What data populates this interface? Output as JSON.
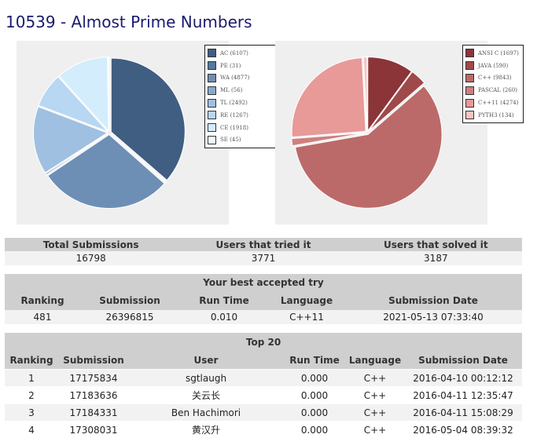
{
  "problem": {
    "title": "10539 - Almost Prime Numbers"
  },
  "verdict_chart": {
    "type": "pie",
    "legend": [
      {
        "label": "AC (6107)",
        "value": 6107,
        "color": "#3f5e82"
      },
      {
        "label": "PE (31)",
        "value": 31,
        "color": "#55799f"
      },
      {
        "label": "WA (4877)",
        "value": 4877,
        "color": "#6d8fb5"
      },
      {
        "label": "ML (56)",
        "value": 56,
        "color": "#86a9cc"
      },
      {
        "label": "TL (2492)",
        "value": 2492,
        "color": "#9fc0e0"
      },
      {
        "label": "RE (1267)",
        "value": 1267,
        "color": "#b8d7f2"
      },
      {
        "label": "CE (1918)",
        "value": 1918,
        "color": "#d3edfc"
      },
      {
        "label": "SE (45)",
        "value": 45,
        "color": "#eefaff"
      }
    ]
  },
  "language_chart": {
    "type": "pie",
    "legend": [
      {
        "label": "ANSI C (1697)",
        "value": 1697,
        "color": "#8b3538"
      },
      {
        "label": "JAVA (590)",
        "value": 590,
        "color": "#a0494b"
      },
      {
        "label": "C++ (9843)",
        "value": 9843,
        "color": "#bb6a69"
      },
      {
        "label": "PASCAL (260)",
        "value": 260,
        "color": "#cf807e"
      },
      {
        "label": "C++11 (4274)",
        "value": 4274,
        "color": "#e79a98"
      },
      {
        "label": "PYTH3 (134)",
        "value": 134,
        "color": "#f8c3c0"
      }
    ]
  },
  "totals": {
    "headers": [
      "Total Submissions",
      "Users that tried it",
      "Users that solved it"
    ],
    "values": [
      "16798",
      "3771",
      "3187"
    ]
  },
  "best_try": {
    "title": "Your best accepted try",
    "headers": [
      "Ranking",
      "Submission",
      "Run Time",
      "Language",
      "Submission Date"
    ],
    "values": [
      "481",
      "26396815",
      "0.010",
      "C++11",
      "2021-05-13 07:33:40"
    ]
  },
  "top20": {
    "title": "Top 20",
    "headers": [
      "Ranking",
      "Submission",
      "User",
      "Run Time",
      "Language",
      "Submission Date"
    ],
    "rows": [
      [
        "1",
        "17175834",
        "sgtlaugh",
        "0.000",
        "C++",
        "2016-04-10 00:12:12"
      ],
      [
        "2",
        "17183636",
        "关云长",
        "0.000",
        "C++",
        "2016-04-11 12:35:47"
      ],
      [
        "3",
        "17184331",
        "Ben Hachimori",
        "0.000",
        "C++",
        "2016-04-11 15:08:29"
      ],
      [
        "4",
        "17308031",
        "黄汉升",
        "0.000",
        "C++",
        "2016-05-04 08:39:32"
      ]
    ]
  }
}
